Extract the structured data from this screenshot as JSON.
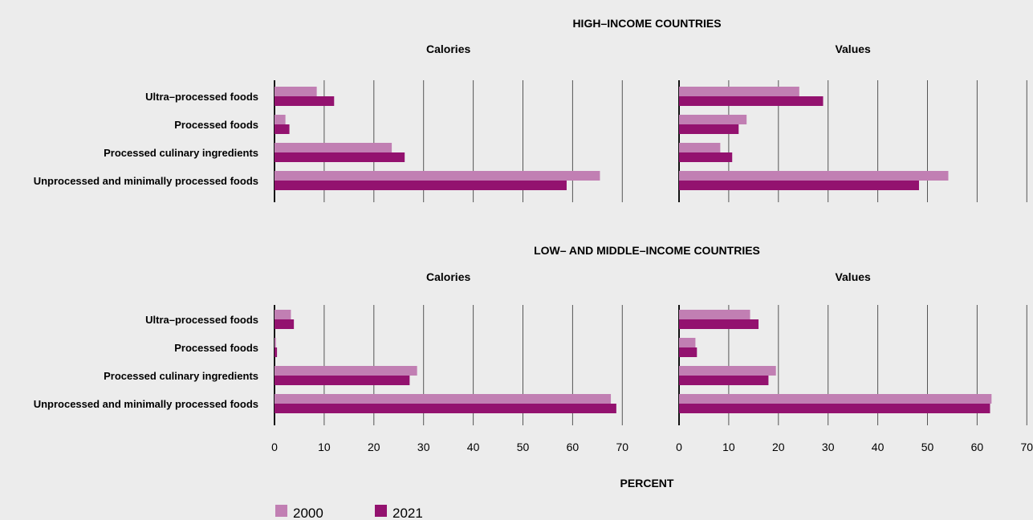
{
  "chart_data": {
    "type": "bar",
    "orientation": "horizontal",
    "xlabel": "PERCENT",
    "xlim": [
      0,
      70
    ],
    "xticks": [
      0,
      10,
      20,
      30,
      40,
      50,
      60,
      70
    ],
    "grid": true,
    "legend_placement": "bottom-left",
    "categories": [
      "Ultra–processed foods",
      "Processed foods",
      "Processed culinary ingredients",
      "Unprocessed and minimally processed foods"
    ],
    "series": [
      {
        "name": "2000",
        "color": "#c17fb3"
      },
      {
        "name": "2021",
        "color": "#93126f"
      }
    ],
    "groups": [
      {
        "title": "HIGH–INCOME COUNTRIES",
        "panels": [
          {
            "subtitle": "Calories",
            "values_2000": [
              8.5,
              2.2,
              23.6,
              65.5
            ],
            "values_2021": [
              12,
              3,
              26.2,
              58.8
            ]
          },
          {
            "subtitle": "Values",
            "values_2000": [
              24.2,
              13.6,
              8.3,
              54.2
            ],
            "values_2021": [
              29,
              12,
              10.7,
              48.3
            ]
          }
        ]
      },
      {
        "title": "LOW– AND MIDDLE–INCOME COUNTRIES",
        "panels": [
          {
            "subtitle": "Calories",
            "values_2000": [
              3.3,
              0.3,
              28.7,
              67.7
            ],
            "values_2021": [
              3.9,
              0.5,
              27.2,
              68.8
            ]
          },
          {
            "subtitle": "Values",
            "values_2000": [
              14.3,
              3.3,
              19.5,
              62.9
            ],
            "values_2021": [
              16,
              3.6,
              18,
              62.6
            ]
          }
        ]
      }
    ]
  }
}
